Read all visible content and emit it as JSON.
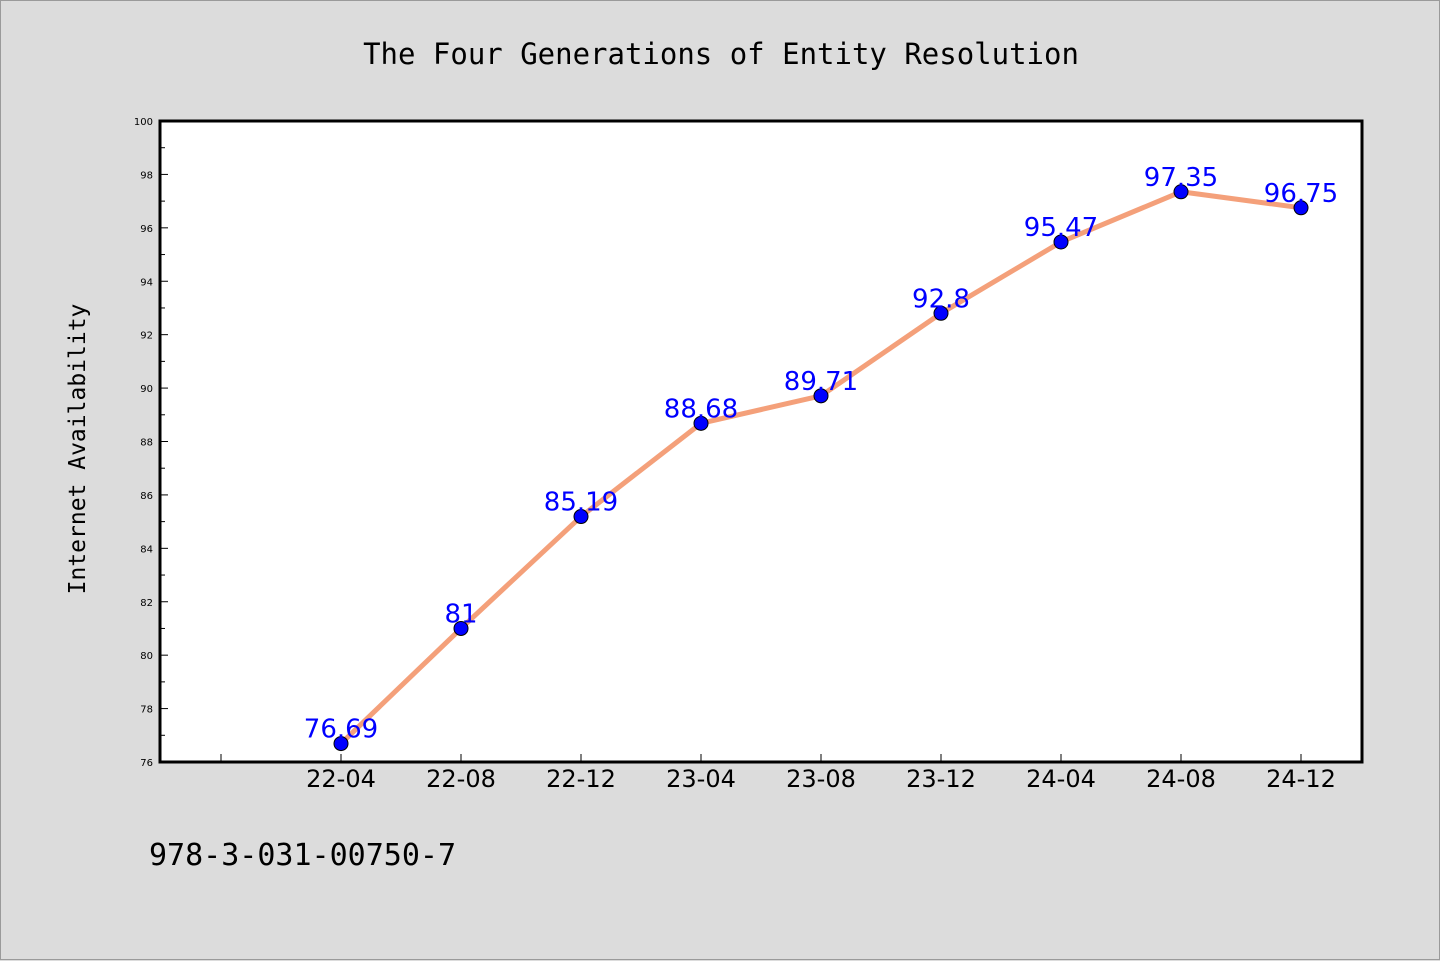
{
  "chart_data": {
    "type": "line",
    "title": "The Four Generations of Entity Resolution",
    "xlabel": "",
    "ylabel": "Internet Availability",
    "categories": [
      "22-04",
      "22-08",
      "22-12",
      "23-04",
      "23-08",
      "23-12",
      "24-04",
      "24-08",
      "24-12"
    ],
    "series": [
      {
        "values": [
          76.69,
          81,
          85.19,
          88.68,
          89.71,
          92.8,
          95.47,
          97.35,
          96.75
        ]
      }
    ],
    "data_labels": [
      "76.69",
      "81",
      "85.19",
      "88.68",
      "89.71",
      "92.8",
      "95.47",
      "97.35",
      "96.75"
    ],
    "ylim": [
      76,
      100
    ],
    "yticks": [
      76,
      78,
      80,
      82,
      84,
      86,
      88,
      90,
      92,
      94,
      96,
      98,
      100
    ],
    "legend": "none",
    "grid": false,
    "colors": {
      "line": "#f4a07a",
      "marker": "#0000ff",
      "label": "#0000ff",
      "plot_bg": "#ffffff",
      "page_bg": "#dcdcdc"
    }
  },
  "footer": {
    "isbn": "978-3-031-00750-7"
  }
}
